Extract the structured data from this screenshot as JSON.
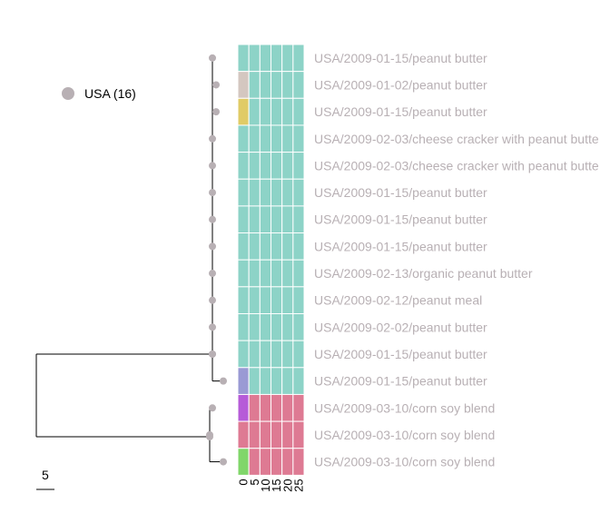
{
  "legend": {
    "label": "USA (16)",
    "color": "#b8b0b4"
  },
  "scale_bar": {
    "label": "5"
  },
  "colors": {
    "branch": "#000000",
    "node": "#b8b0b4",
    "teal": "#8dd3c7",
    "pink": "#de7a93",
    "beige": "#d4c7c0",
    "yellow": "#e0cb66",
    "lavender": "#9a9ad4",
    "purple": "#b65bd8",
    "green": "#80d66a",
    "grid": "#ffffff"
  },
  "heatmap": {
    "column_labels": [
      "0",
      "5",
      "10",
      "15",
      "20",
      "25"
    ]
  },
  "leaves": [
    {
      "label": "USA/2009-01-15/peanut butter",
      "cells": [
        "teal",
        "teal",
        "teal",
        "teal",
        "teal",
        "teal"
      ]
    },
    {
      "label": "USA/2009-01-02/peanut butter",
      "cells": [
        "beige",
        "teal",
        "teal",
        "teal",
        "teal",
        "teal"
      ]
    },
    {
      "label": "USA/2009-01-15/peanut butter",
      "cells": [
        "yellow",
        "teal",
        "teal",
        "teal",
        "teal",
        "teal"
      ]
    },
    {
      "label": "USA/2009-02-03/cheese cracker with peanut butte",
      "cells": [
        "teal",
        "teal",
        "teal",
        "teal",
        "teal",
        "teal"
      ]
    },
    {
      "label": "USA/2009-02-03/cheese cracker with peanut butte",
      "cells": [
        "teal",
        "teal",
        "teal",
        "teal",
        "teal",
        "teal"
      ]
    },
    {
      "label": "USA/2009-01-15/peanut butter",
      "cells": [
        "teal",
        "teal",
        "teal",
        "teal",
        "teal",
        "teal"
      ]
    },
    {
      "label": "USA/2009-01-15/peanut butter",
      "cells": [
        "teal",
        "teal",
        "teal",
        "teal",
        "teal",
        "teal"
      ]
    },
    {
      "label": "USA/2009-01-15/peanut butter",
      "cells": [
        "teal",
        "teal",
        "teal",
        "teal",
        "teal",
        "teal"
      ]
    },
    {
      "label": "USA/2009-02-13/organic peanut butter",
      "cells": [
        "teal",
        "teal",
        "teal",
        "teal",
        "teal",
        "teal"
      ]
    },
    {
      "label": "USA/2009-02-12/peanut meal",
      "cells": [
        "teal",
        "teal",
        "teal",
        "teal",
        "teal",
        "teal"
      ]
    },
    {
      "label": "USA/2009-02-02/peanut butter",
      "cells": [
        "teal",
        "teal",
        "teal",
        "teal",
        "teal",
        "teal"
      ]
    },
    {
      "label": "USA/2009-01-15/peanut butter",
      "cells": [
        "teal",
        "teal",
        "teal",
        "teal",
        "teal",
        "teal"
      ]
    },
    {
      "label": "USA/2009-01-15/peanut butter",
      "cells": [
        "lavender",
        "teal",
        "teal",
        "teal",
        "teal",
        "teal"
      ]
    },
    {
      "label": "USA/2009-03-10/corn soy blend",
      "cells": [
        "purple",
        "pink",
        "pink",
        "pink",
        "pink",
        "pink"
      ]
    },
    {
      "label": "USA/2009-03-10/corn soy blend",
      "cells": [
        "pink",
        "pink",
        "pink",
        "pink",
        "pink",
        "pink"
      ]
    },
    {
      "label": "USA/2009-03-10/corn soy blend",
      "cells": [
        "green",
        "pink",
        "pink",
        "pink",
        "pink",
        "pink"
      ]
    }
  ]
}
